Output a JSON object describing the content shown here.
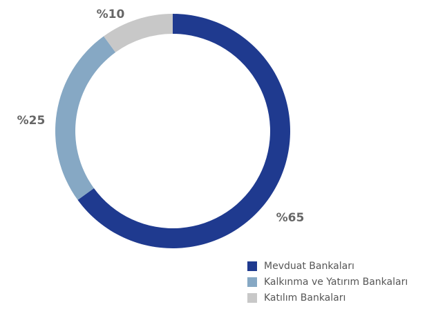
{
  "chart_data": {
    "type": "donut",
    "categories": [
      "Mevduat Bankaları",
      "Kalkınma ve Yatırım Bankaları",
      "Katılım Bankaları"
    ],
    "values": [
      65,
      25,
      10
    ],
    "value_labels": [
      "%65",
      "%25",
      "%10"
    ],
    "colors": [
      "#1f3a8f",
      "#86a8c4",
      "#c8c8c8"
    ]
  }
}
